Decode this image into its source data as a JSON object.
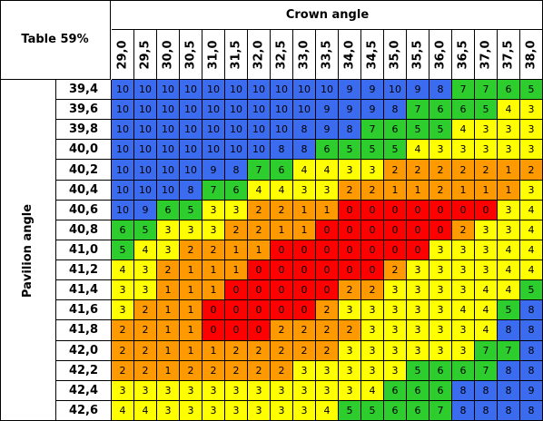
{
  "corner_label": "Table 59%",
  "x_title": "Crown angle",
  "y_title": "Pavilion angle",
  "colors": {
    "blue": "#3b6cf0",
    "green": "#2ccd2c",
    "yellow": "#ffff00",
    "orange": "#ff9900",
    "red": "#ff0000"
  },
  "chart_data": {
    "type": "heatmap",
    "title": "Table 59%",
    "xlabel": "Crown angle",
    "ylabel": "Pavilion angle",
    "x": [
      "29,0",
      "29,5",
      "30,0",
      "30,5",
      "31,0",
      "31,5",
      "32,0",
      "32,5",
      "33,0",
      "33,5",
      "34,0",
      "34,5",
      "35,0",
      "35,5",
      "36,0",
      "36,5",
      "37,0",
      "37,5",
      "38,0"
    ],
    "y": [
      "39,4",
      "39,6",
      "39,8",
      "40,0",
      "40,2",
      "40,4",
      "40,6",
      "40,8",
      "41,0",
      "41,2",
      "41,4",
      "41,6",
      "41,8",
      "42,0",
      "42,2",
      "42,4",
      "42,6"
    ],
    "values": [
      [
        10,
        10,
        10,
        10,
        10,
        10,
        10,
        10,
        10,
        10,
        9,
        9,
        10,
        9,
        8,
        7,
        7,
        6,
        5
      ],
      [
        10,
        10,
        10,
        10,
        10,
        10,
        10,
        10,
        10,
        9,
        9,
        9,
        8,
        7,
        6,
        6,
        5,
        4,
        3
      ],
      [
        10,
        10,
        10,
        10,
        10,
        10,
        10,
        10,
        8,
        9,
        8,
        7,
        6,
        5,
        5,
        4,
        3,
        3,
        3
      ],
      [
        10,
        10,
        10,
        10,
        10,
        10,
        10,
        8,
        8,
        6,
        5,
        5,
        5,
        4,
        3,
        3,
        3,
        3,
        3
      ],
      [
        10,
        10,
        10,
        10,
        9,
        8,
        7,
        6,
        4,
        4,
        3,
        3,
        2,
        2,
        2,
        2,
        2,
        1,
        2
      ],
      [
        10,
        10,
        10,
        8,
        7,
        6,
        4,
        4,
        3,
        3,
        2,
        2,
        1,
        1,
        2,
        1,
        1,
        1,
        3
      ],
      [
        10,
        9,
        6,
        5,
        3,
        3,
        2,
        2,
        1,
        1,
        0,
        0,
        0,
        0,
        0,
        0,
        0,
        3,
        4
      ],
      [
        6,
        5,
        3,
        3,
        3,
        2,
        2,
        1,
        1,
        0,
        0,
        0,
        0,
        0,
        0,
        2,
        3,
        3,
        4
      ],
      [
        5,
        4,
        3,
        2,
        2,
        1,
        1,
        0,
        0,
        0,
        0,
        0,
        0,
        0,
        3,
        3,
        3,
        4,
        4
      ],
      [
        4,
        3,
        2,
        1,
        1,
        1,
        0,
        0,
        0,
        0,
        0,
        0,
        2,
        3,
        3,
        3,
        3,
        4,
        4
      ],
      [
        3,
        3,
        1,
        1,
        1,
        0,
        0,
        0,
        0,
        0,
        2,
        2,
        3,
        3,
        3,
        3,
        4,
        4,
        5
      ],
      [
        3,
        2,
        1,
        1,
        0,
        0,
        0,
        0,
        0,
        2,
        3,
        3,
        3,
        3,
        3,
        4,
        4,
        5,
        8
      ],
      [
        2,
        2,
        1,
        1,
        0,
        0,
        0,
        2,
        2,
        2,
        2,
        3,
        3,
        3,
        3,
        3,
        4,
        8,
        8
      ],
      [
        2,
        2,
        1,
        1,
        1,
        2,
        2,
        2,
        2,
        2,
        3,
        3,
        3,
        3,
        3,
        3,
        7,
        7,
        8
      ],
      [
        2,
        2,
        1,
        2,
        2,
        2,
        2,
        2,
        3,
        3,
        3,
        3,
        3,
        5,
        6,
        6,
        7,
        8,
        8
      ],
      [
        3,
        3,
        3,
        3,
        3,
        3,
        3,
        3,
        3,
        3,
        3,
        4,
        6,
        6,
        6,
        8,
        8,
        8,
        9
      ],
      [
        4,
        4,
        3,
        3,
        3,
        3,
        3,
        3,
        3,
        4,
        5,
        5,
        6,
        6,
        7,
        8,
        8,
        8,
        8
      ]
    ],
    "color_scale": {
      "0": "red",
      "1": "orange",
      "2": "orange",
      "3": "yellow",
      "4": "yellow",
      "5": "green",
      "6": "green",
      "7": "green",
      "8": "blue",
      "9": "blue",
      "10": "blue"
    }
  }
}
